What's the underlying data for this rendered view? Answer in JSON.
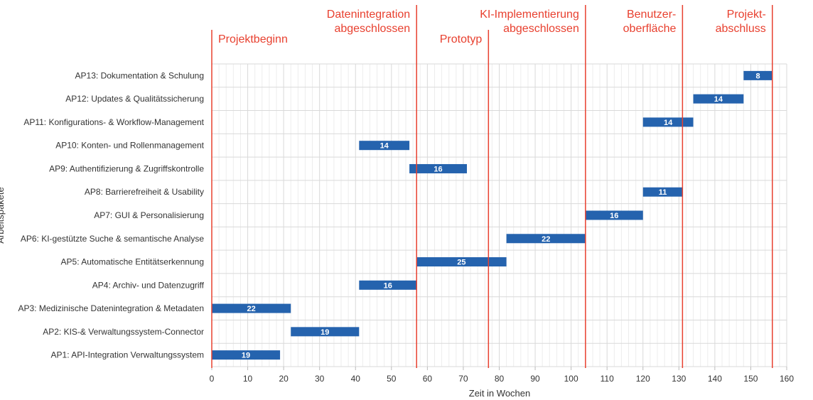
{
  "chart_data": {
    "type": "bar",
    "orientation": "horizontal-gantt",
    "title": "",
    "xlabel": "Zeit in Wochen",
    "ylabel": "Arbeitspakete",
    "xlim": [
      0,
      160
    ],
    "xticks": [
      0,
      10,
      20,
      30,
      40,
      50,
      60,
      70,
      80,
      90,
      100,
      110,
      120,
      130,
      140,
      150,
      160
    ],
    "grid": true,
    "bar_color": "#2563ae",
    "milestone_color": "#e8402f",
    "tasks": [
      {
        "name": "AP1: API-Integration Verwaltungssystem",
        "start": 0,
        "duration": 19
      },
      {
        "name": "AP2: KIS-& Verwaltungssystem-Connector",
        "start": 22,
        "duration": 19
      },
      {
        "name": "AP3: Medizinische Datenintegration & Metadaten",
        "start": 0,
        "duration": 22
      },
      {
        "name": "AP4: Archiv- und Datenzugriff",
        "start": 41,
        "duration": 16
      },
      {
        "name": "AP5: Automatische Entitätserkennung",
        "start": 57,
        "duration": 25
      },
      {
        "name": "AP6: KI-gestützte Suche & semantische Analyse",
        "start": 82,
        "duration": 22
      },
      {
        "name": "AP7: GUI & Personalisierung",
        "start": 104,
        "duration": 16
      },
      {
        "name": "AP8: Barrierefreiheit & Usability",
        "start": 120,
        "duration": 11
      },
      {
        "name": "AP9: Authentifizierung & Zugriffskontrolle",
        "start": 55,
        "duration": 16
      },
      {
        "name": "AP10: Konten- und Rollenmanagement",
        "start": 41,
        "duration": 14
      },
      {
        "name": "AP11: Konfigurations- & Workflow-Management",
        "start": 120,
        "duration": 14
      },
      {
        "name": "AP12: Updates & Qualitätssicherung",
        "start": 134,
        "duration": 14
      },
      {
        "name": "AP13: Dokumentation & Schulung",
        "start": 148,
        "duration": 8
      }
    ],
    "milestones": [
      {
        "week": 0,
        "lines": [
          "Projektbeginn"
        ]
      },
      {
        "week": 57,
        "lines": [
          "Datenintegration",
          "abgeschlossen"
        ]
      },
      {
        "week": 77,
        "lines": [
          "Prototyp"
        ]
      },
      {
        "week": 104,
        "lines": [
          "KI-Implementierung",
          "abgeschlossen"
        ]
      },
      {
        "week": 131,
        "lines": [
          "Benutzer-",
          "oberfläche"
        ]
      },
      {
        "week": 156,
        "lines": [
          "Projekt-",
          "abschluss"
        ]
      }
    ]
  }
}
